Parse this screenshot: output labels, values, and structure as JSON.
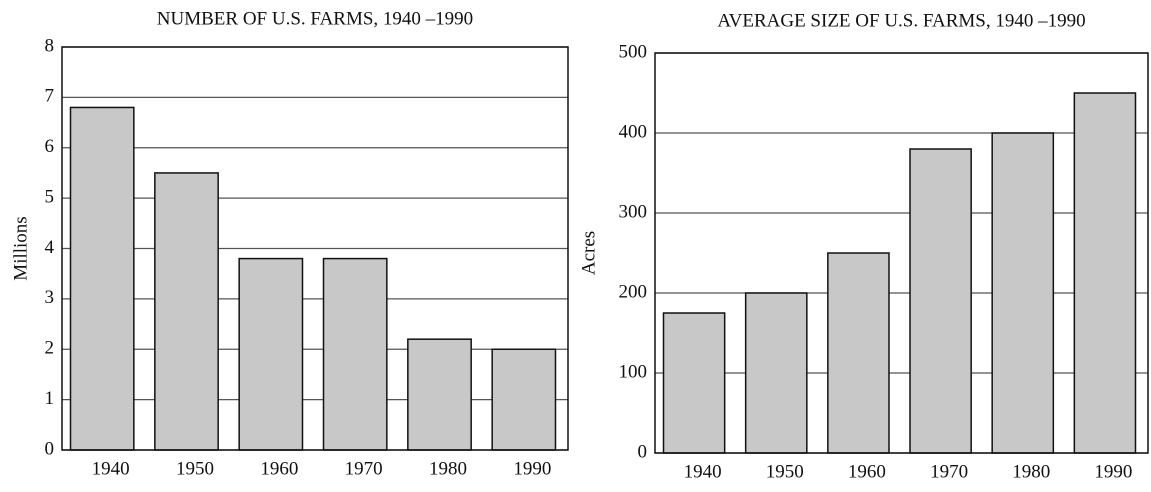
{
  "chart_data": [
    {
      "type": "bar",
      "title": "NUMBER OF U.S. FARMS, 1940 –1990",
      "ylabel": "Millions",
      "categories": [
        "1940",
        "1950",
        "1960",
        "1970",
        "1980",
        "1990"
      ],
      "values": [
        6.8,
        5.5,
        3.8,
        3.8,
        2.2,
        2.0
      ],
      "color": "#c8c8c8",
      "ylim": [
        0,
        8
      ],
      "yticks": [
        0,
        1,
        2,
        3,
        4,
        5,
        6,
        7,
        8
      ],
      "grid": true
    },
    {
      "type": "bar",
      "title": "AVERAGE SIZE OF U.S. FARMS, 1940 –1990",
      "ylabel": "Acres",
      "categories": [
        "1940",
        "1950",
        "1960",
        "1970",
        "1980",
        "1990"
      ],
      "values": [
        175,
        200,
        250,
        380,
        400,
        450
      ],
      "color": "#c8c8c8",
      "ylim": [
        0,
        500
      ],
      "yticks": [
        0,
        100,
        200,
        300,
        400,
        500
      ],
      "grid": true
    }
  ]
}
